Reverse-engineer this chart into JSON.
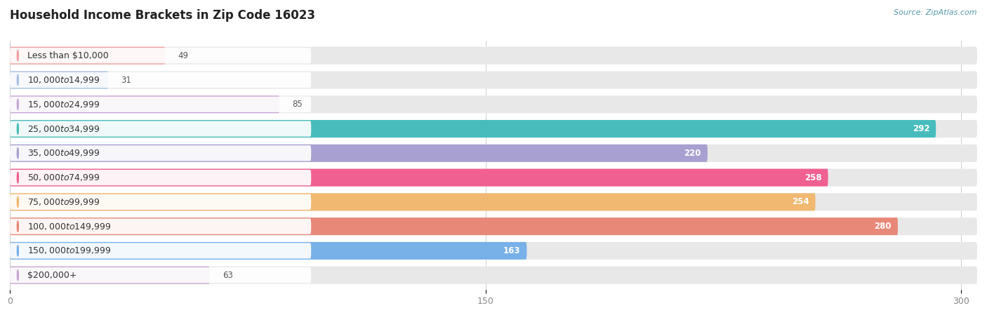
{
  "title": "Household Income Brackets in Zip Code 16023",
  "source": "Source: ZipAtlas.com",
  "categories": [
    "Less than $10,000",
    "$10,000 to $14,999",
    "$15,000 to $24,999",
    "$25,000 to $34,999",
    "$35,000 to $49,999",
    "$50,000 to $74,999",
    "$75,000 to $99,999",
    "$100,000 to $149,999",
    "$150,000 to $199,999",
    "$200,000+"
  ],
  "values": [
    49,
    31,
    85,
    292,
    220,
    258,
    254,
    280,
    163,
    63
  ],
  "bar_colors": [
    "#F2A0A0",
    "#A8C0E8",
    "#C8A8D8",
    "#48BCBC",
    "#A8A0D0",
    "#F06090",
    "#F0B870",
    "#E88878",
    "#78B0E8",
    "#C8A8D0"
  ],
  "value_threshold": 100,
  "xlim_data": [
    0,
    305
  ],
  "xticks": [
    0,
    150,
    300
  ],
  "background_color": "#ffffff",
  "bar_bg_color": "#e8e8e8",
  "label_bg_color": "#ffffff",
  "row_bg_even": "#f7f7f7",
  "row_bg_odd": "#f0f0f0",
  "title_fontsize": 12,
  "label_fontsize": 9,
  "value_fontsize": 8.5,
  "source_color": "#5599aa"
}
